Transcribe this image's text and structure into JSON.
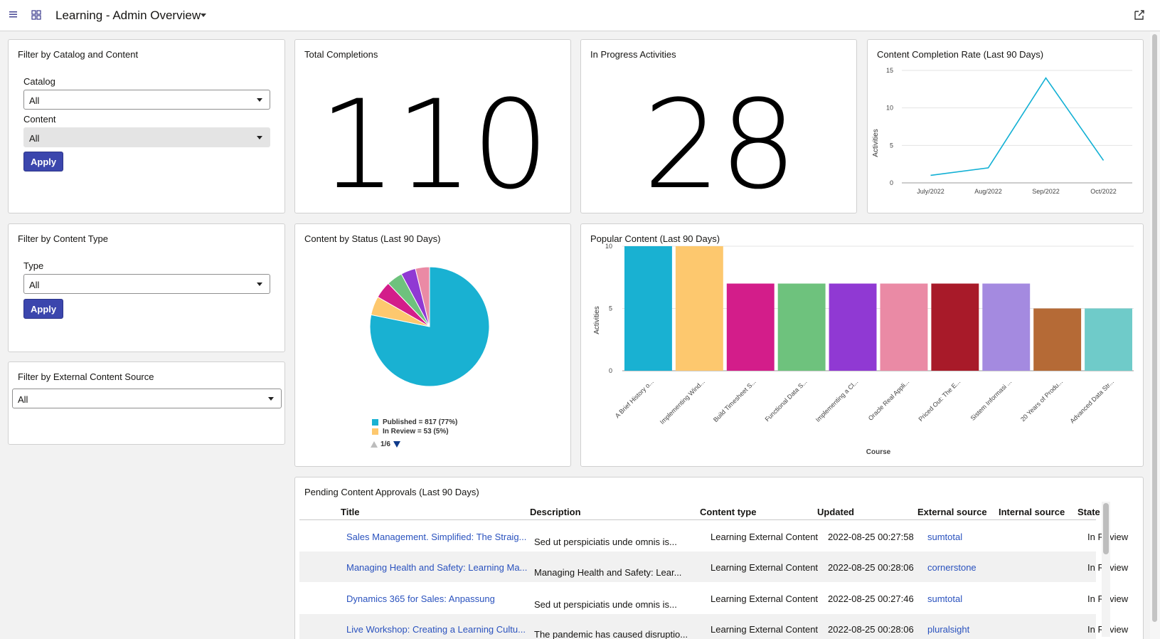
{
  "header": {
    "title": "Learning - Admin Overview",
    "icons": [
      "menu-icon",
      "apps-grid-icon",
      "chevron-down-icon",
      "share-icon"
    ]
  },
  "filter_catalog": {
    "title": "Filter by Catalog and Content",
    "catalog_label": "Catalog",
    "catalog_value": "All",
    "content_label": "Content",
    "content_value": "All",
    "apply_label": "Apply"
  },
  "filter_type": {
    "title": "Filter by Content Type",
    "type_label": "Type",
    "type_value": "All",
    "apply_label": "Apply"
  },
  "filter_external": {
    "title": "Filter by External Content Source",
    "value": "All"
  },
  "total_completions": {
    "title": "Total Completions",
    "value": "110"
  },
  "in_progress": {
    "title": "In Progress Activities",
    "value": "28"
  },
  "completion_rate": {
    "title": "Content Completion Rate (Last 90 Days)",
    "ylabel": "Activities",
    "yticks": [
      "0",
      "5",
      "10",
      "15"
    ]
  },
  "content_status": {
    "title": "Content by Status (Last 90 Days)",
    "legend": [
      "Published = 817 (77%)",
      "In Review = 53 (5%)"
    ],
    "pager": "1/6"
  },
  "popular_content": {
    "title": "Popular Content (Last 90 Days)",
    "ylabel": "Activities",
    "xlabel": "Course",
    "yticks": [
      "0",
      "5",
      "10"
    ]
  },
  "chart_data": [
    {
      "type": "line",
      "title": "Content Completion Rate (Last 90 Days)",
      "categories": [
        "July/2022",
        "Aug/2022",
        "Sep/2022",
        "Oct/2022"
      ],
      "series": [
        {
          "values": [
            1,
            2,
            14,
            3
          ]
        }
      ],
      "ylabel": "Activities",
      "ylim": [
        0,
        15
      ],
      "grid": true,
      "color": "#12b0d4"
    },
    {
      "type": "pie",
      "title": "Content by Status (Last 90 Days)",
      "slices": [
        {
          "name": "Published",
          "value": 817,
          "color": "#19b1d2"
        },
        {
          "name": "In Review",
          "value": 53,
          "color": "#fdc86e"
        },
        {
          "value": 48,
          "color": "#d31d8a"
        },
        {
          "value": 45,
          "color": "#6ec27d"
        },
        {
          "value": 42,
          "color": "#9039d3"
        },
        {
          "value": 40,
          "color": "#ea8aa5"
        }
      ]
    },
    {
      "type": "bar",
      "title": "Popular Content (Last 90 Days)",
      "categories": [
        "A Brief History o...",
        "Implementing Wind...",
        "Build Timesheet S...",
        "Functional Data S...",
        "Implementing a Cl...",
        "Oracle Real Appli...",
        "Priced Out: The E...",
        "Sistem Informasi ...",
        "20 Years of Produ...",
        "Advanced Data Str..."
      ],
      "values": [
        10,
        10,
        7,
        7,
        7,
        7,
        7,
        7,
        5,
        5
      ],
      "colors": [
        "#19b1d2",
        "#fdc86e",
        "#d31d8a",
        "#6ec27d",
        "#9039d3",
        "#ea8aa5",
        "#a81a29",
        "#a48ae0",
        "#b56a36",
        "#6fcbc9"
      ],
      "xlabel": "Course",
      "ylabel": "Activities",
      "ylim": [
        0,
        10
      ],
      "grid": true
    }
  ],
  "approvals": {
    "title": "Pending Content Approvals (Last 90 Days)",
    "columns": [
      "Title",
      "Description",
      "Content type",
      "Updated",
      "External source",
      "Internal source",
      "State"
    ],
    "rows": [
      {
        "title": "Sales Management. Simplified: The Straig...",
        "description": "Sed ut perspiciatis unde omnis is...",
        "type": "Learning External Content",
        "updated": "2022-08-25 00:27:58",
        "external": "sumtotal",
        "internal": "",
        "state": "In Review"
      },
      {
        "title": "Managing Health and Safety: Learning Ma...",
        "description": "Managing Health and Safety: Lear...",
        "type": "Learning External Content",
        "updated": "2022-08-25 00:28:06",
        "external": "cornerstone",
        "internal": "",
        "state": "In Review"
      },
      {
        "title": "Dynamics 365 for Sales: Anpassung",
        "description": "Sed ut perspiciatis unde omnis is...",
        "type": "Learning External Content",
        "updated": "2022-08-25 00:27:46",
        "external": "sumtotal",
        "internal": "",
        "state": "In Review"
      },
      {
        "title": "Live Workshop: Creating a Learning Cultu...",
        "description": "The pandemic has caused disruptio...",
        "type": "Learning External Content",
        "updated": "2022-08-25 00:28:06",
        "external": "pluralsight",
        "internal": "",
        "state": "In Review"
      }
    ]
  }
}
